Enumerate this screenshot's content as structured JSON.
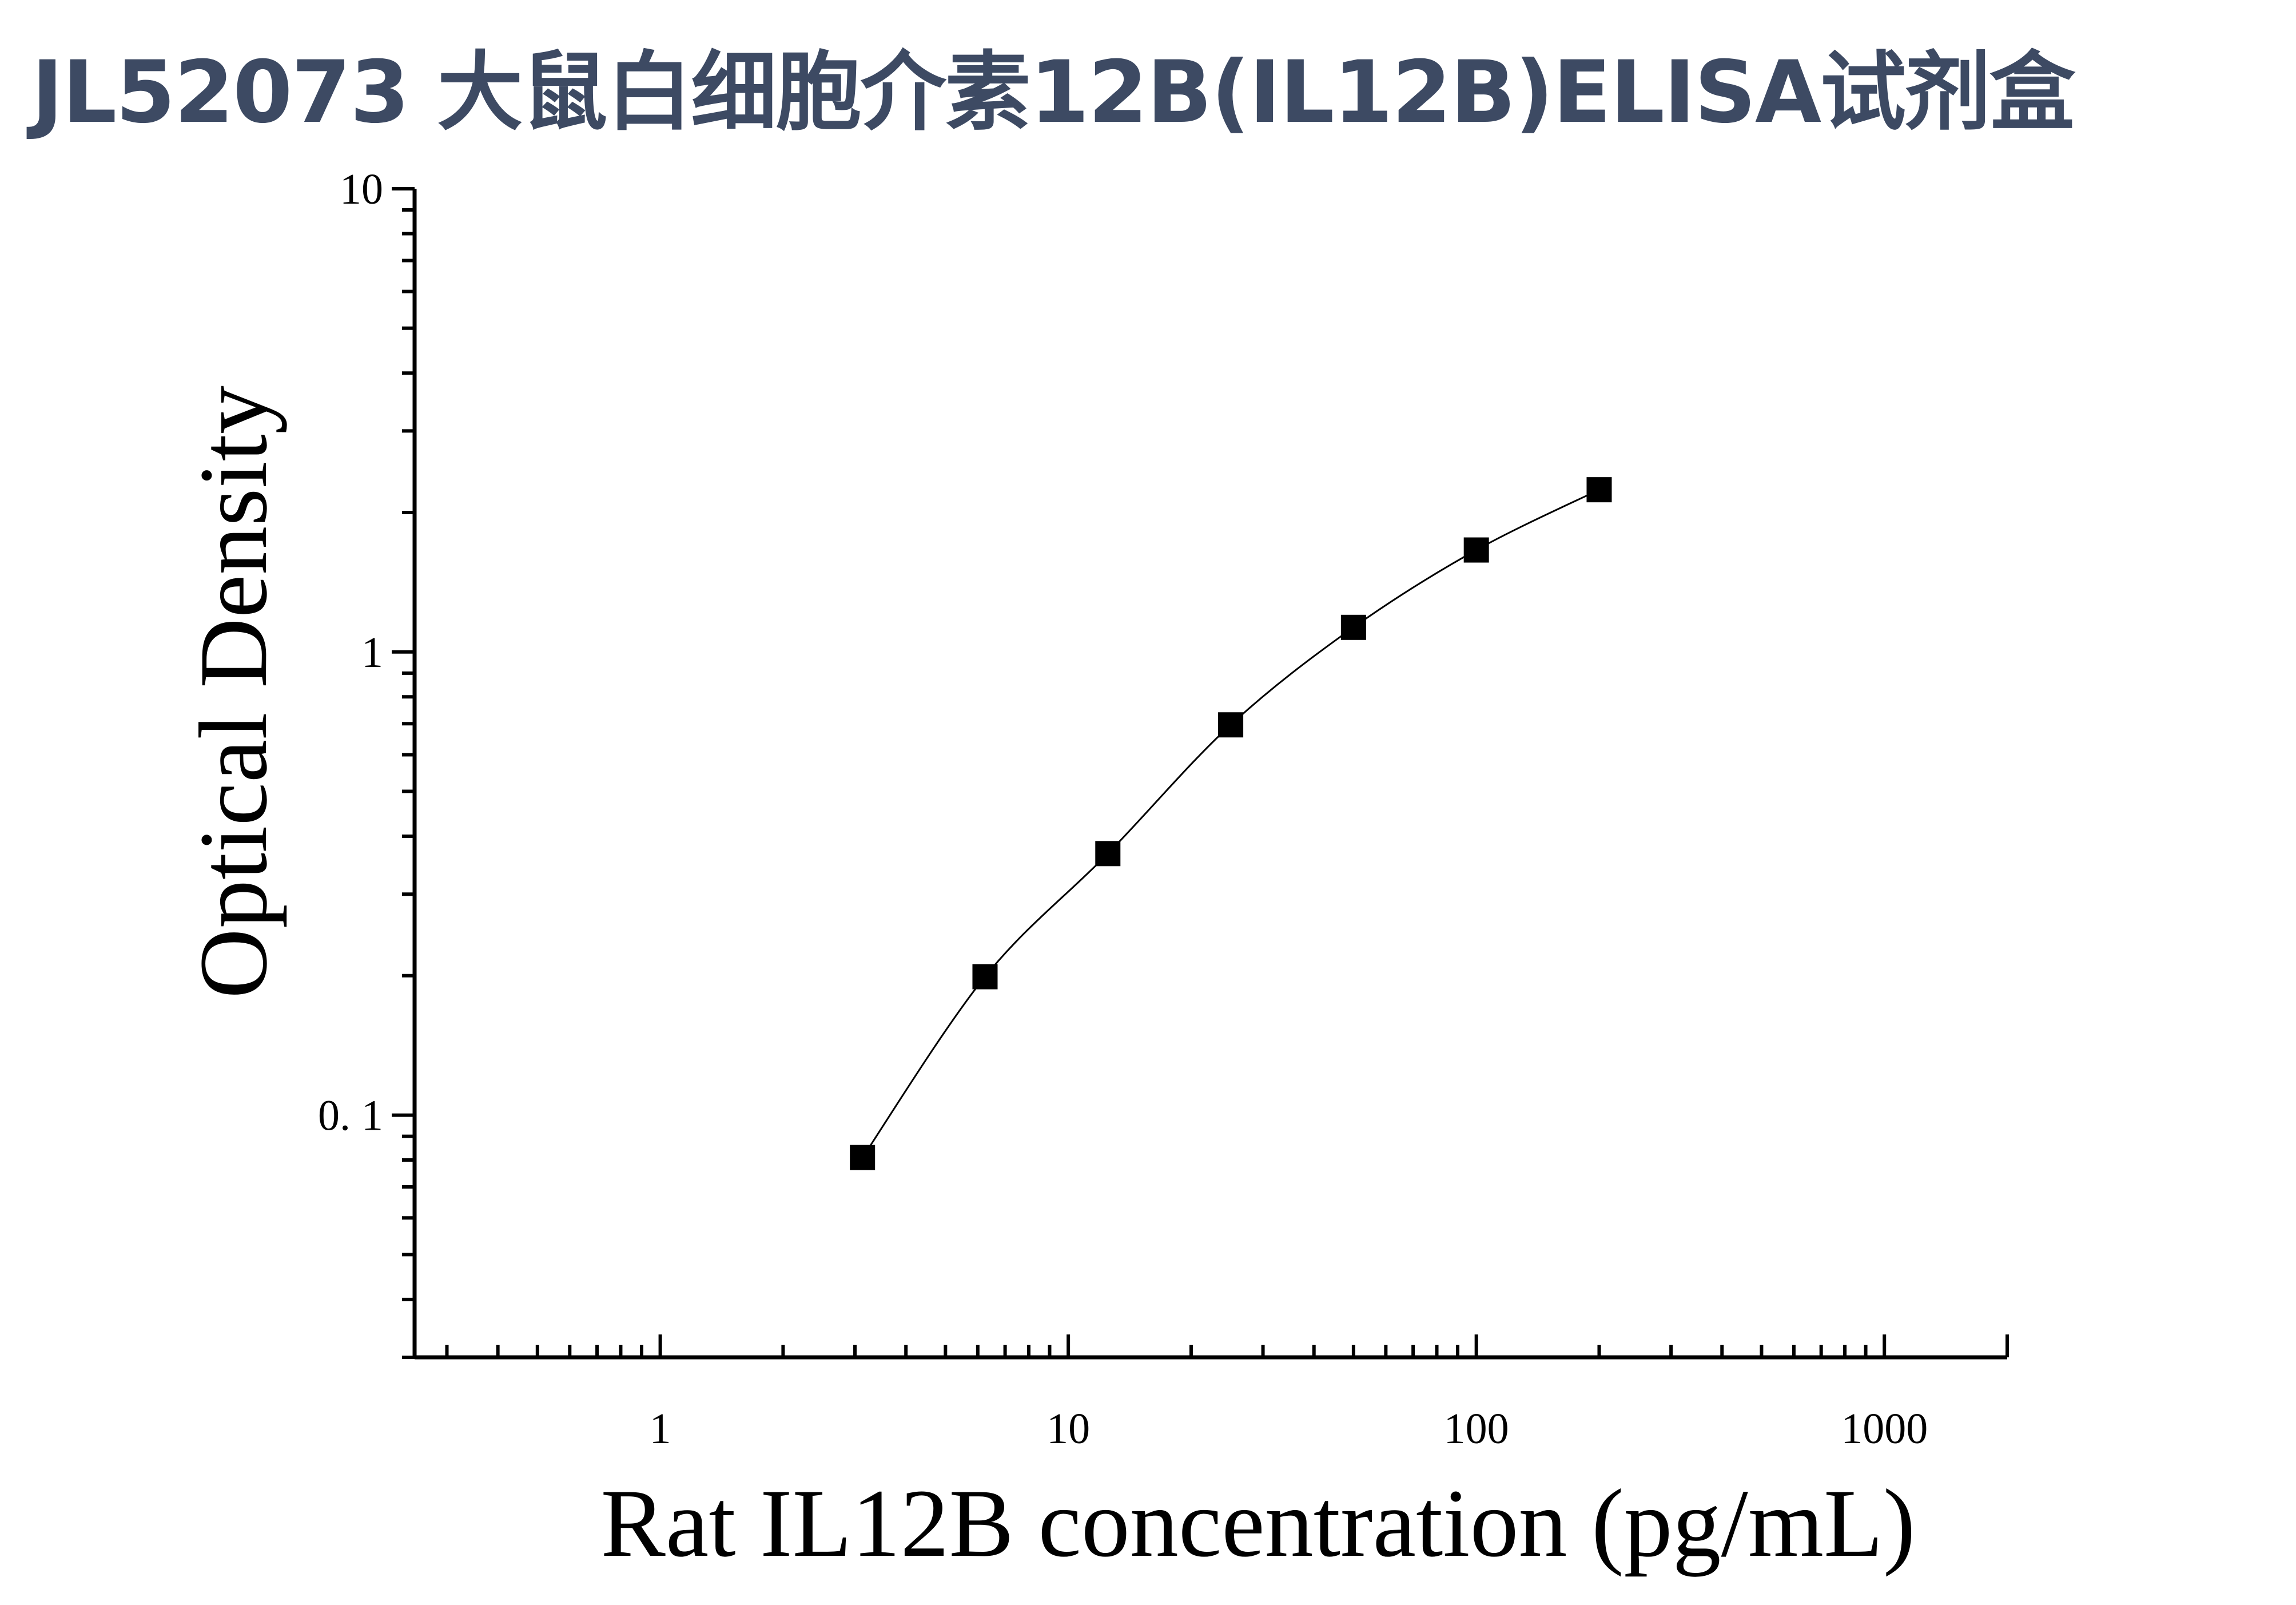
{
  "title": "JL52073 大鼠白细胞介素12B(IL12B)ELISA试剂盒",
  "chart_data": {
    "type": "scatter",
    "xlabel": "Rat IL12B concentration (pg/mL)",
    "ylabel": "Optical Density",
    "xscale": "log",
    "yscale": "log",
    "xlim": [
      0.25,
      2000
    ],
    "ylim": [
      0.03,
      10
    ],
    "x_ticks": [
      1,
      10,
      100,
      1000
    ],
    "x_tick_labels": [
      "1",
      "10",
      "100",
      "1000"
    ],
    "y_ticks": [
      0.1,
      1,
      10
    ],
    "y_tick_labels": [
      "0. 1",
      "1",
      "10"
    ],
    "grid": false,
    "series": [
      {
        "marker": "square",
        "color": "#000000",
        "fit_line": true,
        "x": [
          3.13,
          6.25,
          12.5,
          25,
          50,
          100,
          200
        ],
        "y": [
          0.081,
          0.199,
          0.367,
          0.696,
          1.13,
          1.66,
          2.24
        ]
      }
    ]
  }
}
